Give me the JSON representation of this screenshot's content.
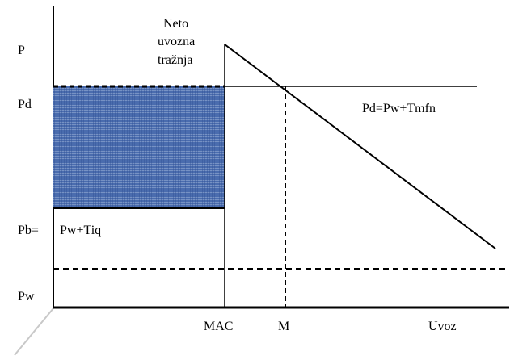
{
  "labels": {
    "y_axis": [
      "P",
      "Pd",
      "Pb=",
      "Pw"
    ],
    "curve_title": [
      "Neto",
      "uvozna",
      "tražnja"
    ],
    "tariff_line": "Pd=Pw+Tmfn",
    "quota_price": "Pw+Tiq",
    "x_axis": [
      "MAC",
      "M",
      "Uvoz"
    ]
  },
  "colors": {
    "shaded_area": "#4a6cae",
    "shaded_area_light": "#9fb3d8",
    "ink": "#000000"
  }
}
